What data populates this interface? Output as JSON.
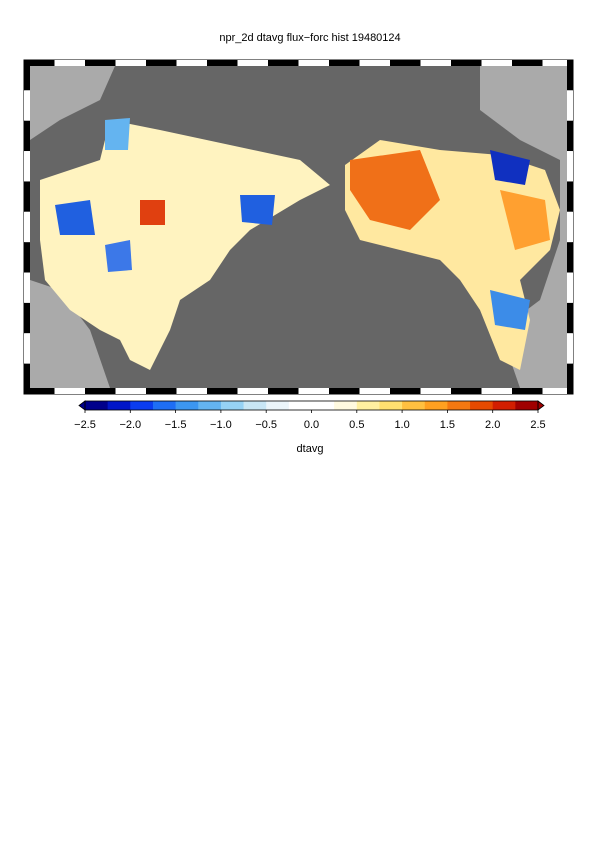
{
  "title": "npr_2d dtavg flux−forc hist 19480124",
  "colorbar": {
    "label": "dtavg",
    "lim": [
      -2.5,
      2.5
    ],
    "ticks": [
      {
        "value": -2.5,
        "label": "−2.5"
      },
      {
        "value": -2.0,
        "label": "−2.0"
      },
      {
        "value": -1.5,
        "label": "−1.5"
      },
      {
        "value": -1.0,
        "label": "−1.0"
      },
      {
        "value": -0.5,
        "label": "−0.5"
      },
      {
        "value": 0,
        "label": "0.0"
      },
      0.5,
      {
        "value": 1,
        "label": "1.0"
      },
      1.5,
      {
        "value": 2,
        "label": "2.0"
      },
      2.5
    ],
    "colors": [
      "#00008b",
      "#0015c8",
      "#0a3cf0",
      "#1e6ef5",
      "#3c96f0",
      "#64b4f0",
      "#96d2f5",
      "#c8e6f5",
      "#ebf5fa",
      "#ffffff",
      "#ffffff",
      "#fffae0",
      "#fff0a0",
      "#ffe070",
      "#ffc040",
      "#ffa020",
      "#f57810",
      "#e64a00",
      "#d21e00",
      "#a00000"
    ]
  }
}
